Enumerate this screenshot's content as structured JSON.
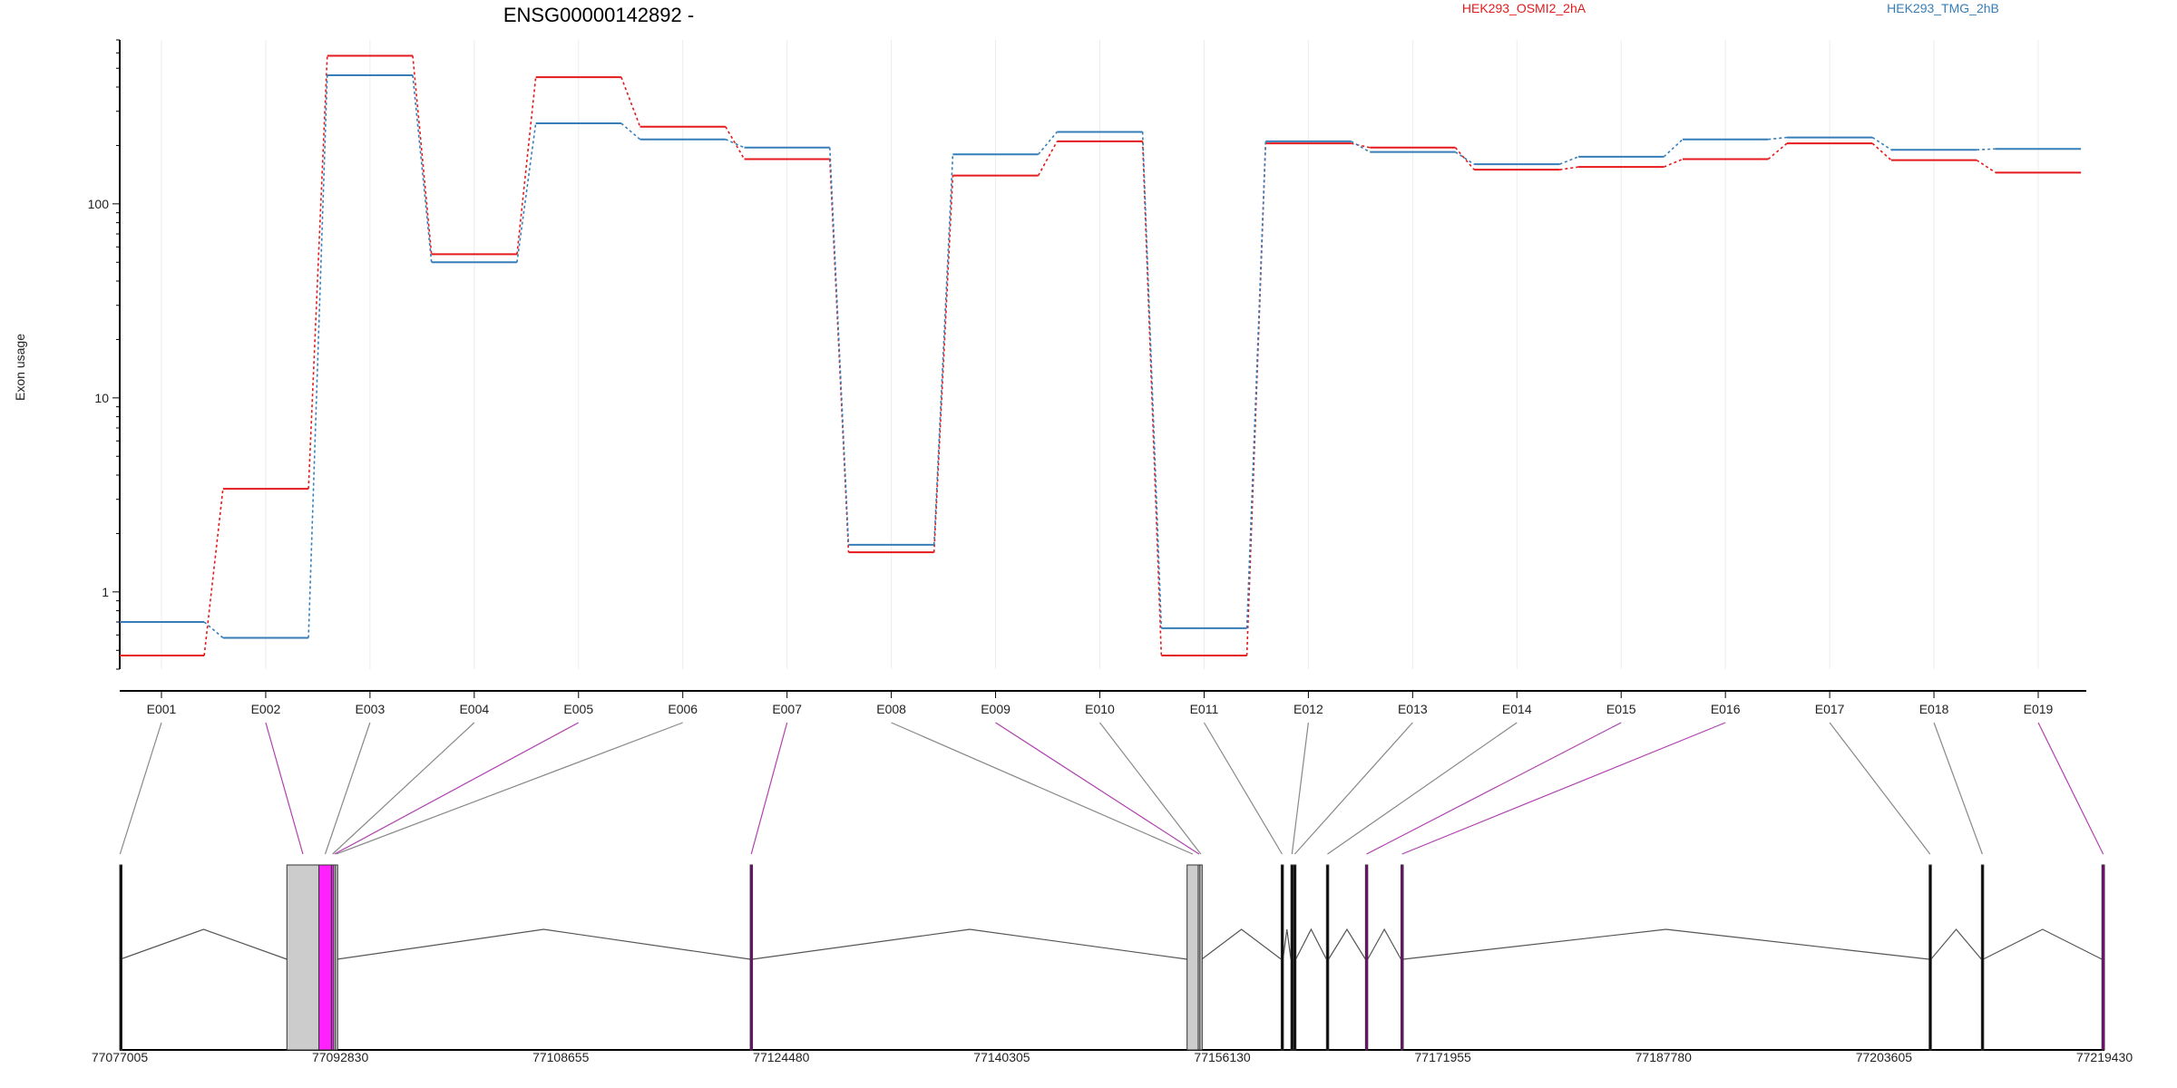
{
  "chart_data": {
    "type": "line",
    "title": "ENSG00000142892 -",
    "ylabel": "Exon usage",
    "yscale": "log",
    "ylim": [
      0.4,
      700
    ],
    "yticks": [
      1,
      10,
      100
    ],
    "ytick_labels": [
      "1",
      "10",
      "100"
    ],
    "grid": "vertical",
    "legend_position": "top",
    "categories": [
      "E001",
      "E002",
      "E003",
      "E004",
      "E005",
      "E006",
      "E007",
      "E008",
      "E009",
      "E010",
      "E011",
      "E012",
      "E013",
      "E014",
      "E015",
      "E016",
      "E017",
      "E018",
      "E019"
    ],
    "series": [
      {
        "name": "HEK293_OSMI2_2hA",
        "color": "#e41a1c",
        "values": [
          0.47,
          3.4,
          580,
          55,
          450,
          250,
          170,
          1.6,
          140,
          210,
          0.47,
          205,
          195,
          150,
          155,
          170,
          205,
          168,
          145
        ]
      },
      {
        "name": "HEK293_TMG_2hB",
        "color": "#377eb8",
        "values": [
          0.7,
          0.58,
          460,
          50,
          260,
          215,
          195,
          1.75,
          180,
          235,
          0.65,
          210,
          185,
          160,
          175,
          215,
          220,
          190,
          192
        ]
      }
    ],
    "gene_model": {
      "coordinate_ticks": [
        "77077005",
        "77092830",
        "77108655",
        "77124480",
        "77140305",
        "77156130",
        "77171955",
        "77187780",
        "77203605",
        "77219430"
      ],
      "coord_range": [
        77077005,
        77219430
      ],
      "exons": [
        {
          "id": "E001",
          "start": 77077005,
          "end": 77077050,
          "color": "#000000",
          "line_color": "#888888"
        },
        {
          "id": "E002",
          "start": 77089000,
          "end": 77091300,
          "color": "#cccccc",
          "line_color": "#b040b0"
        },
        {
          "id": "E003",
          "start": 77091300,
          "end": 77092200,
          "color": "#ff22ff",
          "line_color": "#888888"
        },
        {
          "id": "E004",
          "start": 77092200,
          "end": 77092350,
          "color": "#ff22ff",
          "line_color": "#888888"
        },
        {
          "id": "E005",
          "start": 77092350,
          "end": 77092480,
          "color": "#cccccc",
          "line_color": "#b040b0"
        },
        {
          "id": "E006",
          "start": 77092480,
          "end": 77092600,
          "color": "#cccccc",
          "line_color": "#888888"
        },
        {
          "id": "E007",
          "start": 77122250,
          "end": 77122400,
          "color": "#8b008b",
          "line_color": "#b040b0"
        },
        {
          "id": "E008",
          "start": 77153600,
          "end": 77154400,
          "color": "#cccccc",
          "line_color": "#888888"
        },
        {
          "id": "E009",
          "start": 77154400,
          "end": 77154520,
          "color": "#cccccc",
          "line_color": "#b040b0"
        },
        {
          "id": "E010",
          "start": 77154520,
          "end": 77154650,
          "color": "#cccccc",
          "line_color": "#888888"
        },
        {
          "id": "E011",
          "start": 77160350,
          "end": 77160480,
          "color": "#000000",
          "line_color": "#888888"
        },
        {
          "id": "E012",
          "start": 77161050,
          "end": 77161200,
          "color": "#000000",
          "line_color": "#888888"
        },
        {
          "id": "E013",
          "start": 77161250,
          "end": 77161400,
          "color": "#000000",
          "line_color": "#888888"
        },
        {
          "id": "E014",
          "start": 77163600,
          "end": 77163750,
          "color": "#000000",
          "line_color": "#888888"
        },
        {
          "id": "E015",
          "start": 77166400,
          "end": 77166560,
          "color": "#8b008b",
          "line_color": "#b040b0"
        },
        {
          "id": "E016",
          "start": 77168950,
          "end": 77169100,
          "color": "#8b008b",
          "line_color": "#b040b0"
        },
        {
          "id": "E017",
          "start": 77206850,
          "end": 77206980,
          "color": "#000000",
          "line_color": "#888888"
        },
        {
          "id": "E018",
          "start": 77210600,
          "end": 77210730,
          "color": "#000000",
          "line_color": "#888888"
        },
        {
          "id": "E019",
          "start": 77219250,
          "end": 77219430,
          "color": "#8b008b",
          "line_color": "#b040b0"
        }
      ]
    }
  }
}
